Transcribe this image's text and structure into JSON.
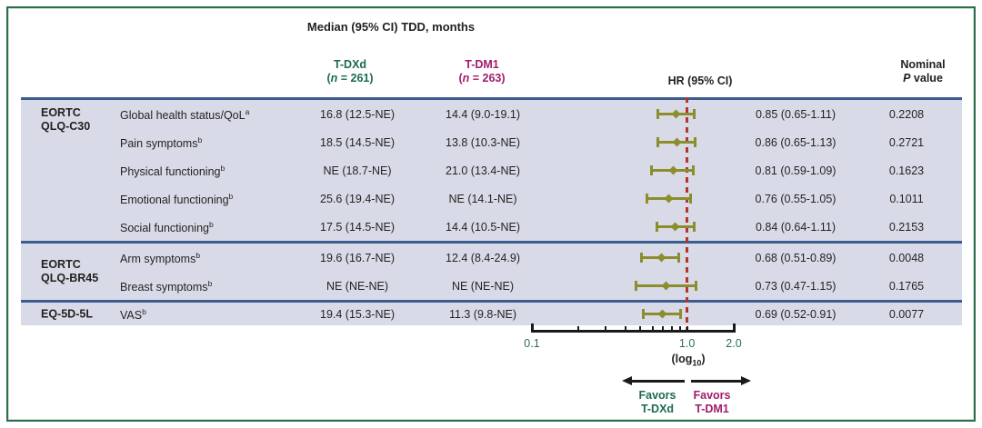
{
  "title": "Median (95% CI) TDD, months",
  "header": {
    "tdxd": {
      "name": "T-DXd",
      "n_pre": "(",
      "n_var": "n",
      "n_post": " = 261)"
    },
    "tdm1": {
      "name": "T-DM1",
      "n_pre": "(",
      "n_var": "n",
      "n_post": " = 263)"
    },
    "hr": "HR (95% CI)",
    "pvalue": {
      "line1": "Nominal",
      "p_var": "P",
      "p_rest": " value"
    }
  },
  "colors": {
    "tdxd_green": "#1d6a52",
    "tdm1_magenta": "#a21c6b",
    "marker_olive": "#8b8e2c",
    "reference_red": "#b5352a",
    "band_lavender": "#d8dbe7",
    "rule_navy": "#3a5c8e",
    "frame_green": "#2e6e4e"
  },
  "chart_data": {
    "type": "forest",
    "axis": {
      "scale": "log10",
      "min": 0.1,
      "max": 2.0,
      "tick_values": [
        0.1,
        0.2,
        0.3,
        0.4,
        0.5,
        0.6,
        0.7,
        0.8,
        0.9,
        1.0,
        2.0
      ],
      "labeled_ticks": [
        "0.1",
        "1.0",
        "2.0"
      ],
      "label_pre": "(log",
      "label_sub": "10",
      "label_post": ")",
      "reference_line": 1.0
    },
    "favors_left": {
      "line1": "Favors",
      "line2": "T-DXd"
    },
    "favors_right": {
      "line1": "Favors",
      "line2": "T-DM1"
    },
    "groups": [
      {
        "name_lines": [
          "EORTC",
          "QLQ-C30"
        ],
        "rows": [
          {
            "label": "Global health status/QoL",
            "sup": "a",
            "tdxd": "16.8 (12.5-NE)",
            "tdm1": "14.4 (9.0-19.1)",
            "hr": 0.85,
            "ci_low": 0.65,
            "ci_high": 1.11,
            "hr_text": "0.85 (0.65-1.11)",
            "p": "0.2208"
          },
          {
            "label": "Pain symptoms",
            "sup": "b",
            "tdxd": "18.5 (14.5-NE)",
            "tdm1": "13.8 (10.3-NE)",
            "hr": 0.86,
            "ci_low": 0.65,
            "ci_high": 1.13,
            "hr_text": "0.86 (0.65-1.13)",
            "p": "0.2721"
          },
          {
            "label": "Physical functioning",
            "sup": "b",
            "tdxd": "NE (18.7-NE)",
            "tdm1": "21.0 (13.4-NE)",
            "hr": 0.81,
            "ci_low": 0.59,
            "ci_high": 1.09,
            "hr_text": "0.81 (0.59-1.09)",
            "p": "0.1623"
          },
          {
            "label": "Emotional functioning",
            "sup": "b",
            "tdxd": "25.6 (19.4-NE)",
            "tdm1": "NE (14.1-NE)",
            "hr": 0.76,
            "ci_low": 0.55,
            "ci_high": 1.05,
            "hr_text": "0.76 (0.55-1.05)",
            "p": "0.1011"
          },
          {
            "label": "Social functioning",
            "sup": "b",
            "tdxd": "17.5 (14.5-NE)",
            "tdm1": "14.4 (10.5-NE)",
            "hr": 0.84,
            "ci_low": 0.64,
            "ci_high": 1.11,
            "hr_text": "0.84 (0.64-1.11)",
            "p": "0.2153"
          }
        ]
      },
      {
        "name_lines": [
          "EORTC",
          "QLQ-BR45"
        ],
        "rows": [
          {
            "label": "Arm symptoms",
            "sup": "b",
            "tdxd": "19.6 (16.7-NE)",
            "tdm1": "12.4 (8.4-24.9)",
            "hr": 0.68,
            "ci_low": 0.51,
            "ci_high": 0.89,
            "hr_text": "0.68 (0.51-0.89)",
            "p": "0.0048"
          },
          {
            "label": "Breast symptoms",
            "sup": "b",
            "tdxd": "NE (NE-NE)",
            "tdm1": "NE (NE-NE)",
            "hr": 0.73,
            "ci_low": 0.47,
            "ci_high": 1.15,
            "hr_text": "0.73 (0.47-1.15)",
            "p": "0.1765"
          }
        ]
      },
      {
        "name_lines": [
          "EQ-5D-5L"
        ],
        "rows": [
          {
            "label": "VAS",
            "sup": "b",
            "tdxd": "19.4 (15.3-NE)",
            "tdm1": "11.3 (9.8-NE)",
            "hr": 0.69,
            "ci_low": 0.52,
            "ci_high": 0.91,
            "hr_text": "0.69 (0.52-0.91)",
            "p": "0.0077"
          }
        ]
      }
    ]
  }
}
